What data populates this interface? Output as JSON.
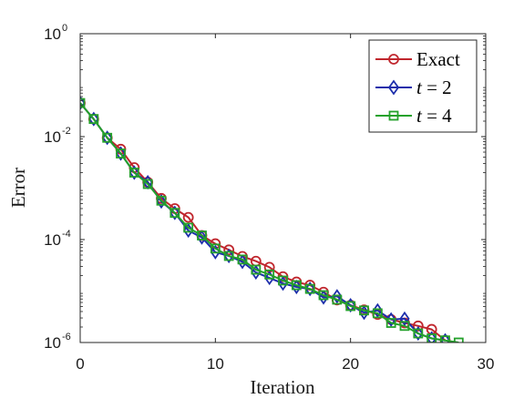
{
  "chart_data": {
    "type": "line",
    "xlabel": "Iteration",
    "ylabel": "Error",
    "xlim": [
      0,
      30
    ],
    "ylim": [
      1e-06,
      1
    ],
    "yscale": "log",
    "grid": false,
    "legend_position": "top-right",
    "x_ticks": [
      {
        "value": 0,
        "label": "0"
      },
      {
        "value": 10,
        "label": "10"
      },
      {
        "value": 20,
        "label": "20"
      },
      {
        "value": 30,
        "label": "30"
      }
    ],
    "y_ticks": [
      {
        "value": 1e-06,
        "base": "10",
        "exp": "-6"
      },
      {
        "value": 0.0001,
        "base": "10",
        "exp": "-4"
      },
      {
        "value": 0.01,
        "base": "10",
        "exp": "-2"
      },
      {
        "value": 1,
        "base": "10",
        "exp": "0"
      }
    ],
    "series": [
      {
        "name": "Exact",
        "legend_text": "Exact",
        "color": "#c0262d",
        "marker": "circle",
        "x": [
          0,
          1,
          2,
          3,
          4,
          5,
          6,
          7,
          8,
          9,
          10,
          11,
          12,
          13,
          14,
          15,
          16,
          17,
          18,
          19,
          20,
          21,
          22,
          23,
          24,
          25,
          26,
          27
        ],
        "y": [
          0.045,
          0.022,
          0.0095,
          0.0057,
          0.0025,
          0.0013,
          0.00063,
          0.0004,
          0.00027,
          0.00012,
          8.3e-05,
          6.3e-05,
          4.7e-05,
          3.8e-05,
          2.9e-05,
          1.9e-05,
          1.5e-05,
          1.3e-05,
          9.5e-06,
          6.7e-06,
          5.3e-06,
          4.3e-06,
          3.5e-06,
          2.8e-06,
          2.4e-06,
          2.1e-06,
          1.8e-06,
          1.1e-06
        ]
      },
      {
        "name": "t = 2",
        "legend_var": "t",
        "legend_val": " = 2",
        "color": "#1d2eab",
        "marker": "diamond",
        "x": [
          0,
          1,
          2,
          3,
          4,
          5,
          6,
          7,
          8,
          9,
          10,
          11,
          12,
          13,
          14,
          15,
          16,
          17,
          18,
          19,
          20,
          21,
          22,
          23,
          24,
          25,
          26,
          27
        ],
        "y": [
          0.045,
          0.022,
          0.0095,
          0.0047,
          0.002,
          0.0013,
          0.00055,
          0.00033,
          0.00015,
          0.00011,
          5.7e-05,
          4.8e-05,
          3.7e-05,
          2.3e-05,
          1.8e-05,
          1.4e-05,
          1.2e-05,
          1.1e-05,
          7.5e-06,
          7.9e-06,
          5.3e-06,
          3.8e-06,
          4.2e-06,
          2.8e-06,
          2.9e-06,
          1.5e-06,
          1.2e-06,
          1.1e-06
        ]
      },
      {
        "name": "t = 4",
        "legend_var": "t",
        "legend_val": " = 4",
        "color": "#24a12b",
        "marker": "square",
        "x": [
          0,
          1,
          2,
          3,
          4,
          5,
          6,
          7,
          8,
          9,
          10,
          11,
          12,
          13,
          14,
          15,
          16,
          17,
          18,
          19,
          20,
          21,
          22,
          23,
          24,
          25,
          26,
          27,
          28
        ],
        "y": [
          0.045,
          0.022,
          0.0095,
          0.0047,
          0.002,
          0.0012,
          0.00057,
          0.00033,
          0.00017,
          0.00012,
          6.7e-05,
          4.8e-05,
          4.1e-05,
          2.6e-05,
          2.1e-05,
          1.6e-05,
          1.3e-05,
          1.1e-05,
          8.3e-06,
          6.8e-06,
          5.1e-06,
          4.2e-06,
          3.7e-06,
          2.4e-06,
          2.1e-06,
          1.5e-06,
          1.2e-06,
          1.1e-06,
          1e-06
        ]
      }
    ]
  }
}
